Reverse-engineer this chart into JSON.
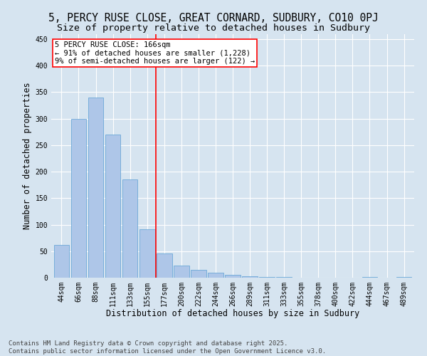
{
  "title": "5, PERCY RUSE CLOSE, GREAT CORNARD, SUDBURY, CO10 0PJ",
  "subtitle": "Size of property relative to detached houses in Sudbury",
  "xlabel": "Distribution of detached houses by size in Sudbury",
  "ylabel": "Number of detached properties",
  "categories": [
    "44sqm",
    "66sqm",
    "88sqm",
    "111sqm",
    "133sqm",
    "155sqm",
    "177sqm",
    "200sqm",
    "222sqm",
    "244sqm",
    "266sqm",
    "289sqm",
    "311sqm",
    "333sqm",
    "355sqm",
    "378sqm",
    "400sqm",
    "422sqm",
    "444sqm",
    "467sqm",
    "489sqm"
  ],
  "values": [
    62,
    300,
    340,
    270,
    185,
    92,
    45,
    23,
    15,
    10,
    6,
    3,
    2,
    2,
    0,
    0,
    0,
    0,
    2,
    0,
    2
  ],
  "bar_color": "#aec6e8",
  "bar_edge_color": "#5a9fd4",
  "background_color": "#d6e4f0",
  "grid_color": "#ffffff",
  "annotation_text_line1": "5 PERCY RUSE CLOSE: 166sqm",
  "annotation_text_line2": "← 91% of detached houses are smaller (1,228)",
  "annotation_text_line3": "9% of semi-detached houses are larger (122) →",
  "ylim": [
    0,
    460
  ],
  "yticks": [
    0,
    50,
    100,
    150,
    200,
    250,
    300,
    350,
    400,
    450
  ],
  "footer_line1": "Contains HM Land Registry data © Crown copyright and database right 2025.",
  "footer_line2": "Contains public sector information licensed under the Open Government Licence v3.0.",
  "title_fontsize": 10.5,
  "subtitle_fontsize": 9.5,
  "xlabel_fontsize": 8.5,
  "ylabel_fontsize": 8.5,
  "tick_fontsize": 7,
  "footer_fontsize": 6.5,
  "annotation_fontsize": 7.5
}
